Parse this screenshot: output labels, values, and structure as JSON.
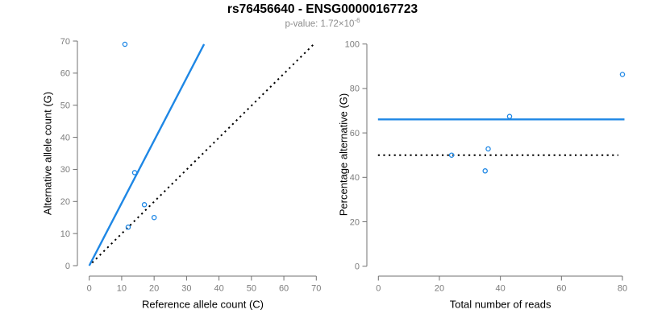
{
  "header": {
    "title": "rs76456640 - ENSG00000167723",
    "subtitle_main": "p-value: 1.72×10",
    "subtitle_exponent": "-6"
  },
  "colors": {
    "accent_blue": "#1E87E5",
    "identity_black": "#000000",
    "axis_gray": "#707070",
    "tick_label_gray": "#7C7C7C",
    "subtitle_gray": "#8C8C8C"
  },
  "chart_data": [
    {
      "type": "scatter",
      "panel": "left",
      "xlabel": "Reference allele count (C)",
      "ylabel": "Alternative allele count (G)",
      "xlim": [
        0,
        70
      ],
      "ylim": [
        0,
        70
      ],
      "xticks": [
        0,
        10,
        20,
        30,
        40,
        50,
        60,
        70
      ],
      "yticks": [
        0,
        10,
        20,
        30,
        40,
        50,
        60,
        70
      ],
      "grid": false,
      "legend": "none",
      "marker": "open-circle",
      "points": [
        [
          11,
          69
        ],
        [
          12,
          12
        ],
        [
          14,
          29
        ],
        [
          17,
          19
        ],
        [
          20,
          15
        ]
      ],
      "lines": [
        {
          "name": "fit-line",
          "type": "segment",
          "x1": 0,
          "y1": 0,
          "x2": 35.4,
          "y2": 69,
          "style": "solid",
          "color": "blue"
        },
        {
          "name": "identity-line",
          "type": "segment",
          "x1": 0.9,
          "y1": 0.9,
          "x2": 69,
          "y2": 68.8,
          "style": "dotted",
          "color": "black"
        }
      ]
    },
    {
      "type": "scatter",
      "panel": "right",
      "xlabel": "Total number of reads",
      "ylabel": "Percentage alternative (G)",
      "xlim": [
        0,
        80
      ],
      "ylim": [
        0,
        100
      ],
      "xticks": [
        0,
        20,
        40,
        60,
        80
      ],
      "yticks": [
        0,
        20,
        40,
        60,
        80,
        100
      ],
      "grid": false,
      "legend": "none",
      "marker": "open-circle",
      "points": [
        [
          24,
          50
        ],
        [
          35,
          42.9
        ],
        [
          36,
          52.8
        ],
        [
          43,
          67.4
        ],
        [
          80,
          86.3
        ]
      ],
      "lines": [
        {
          "name": "mean-percentage-line",
          "type": "hline",
          "y": 66.1,
          "style": "solid",
          "color": "blue"
        },
        {
          "name": "expected-percentage-line",
          "type": "hline",
          "y": 50,
          "style": "dotted",
          "color": "black"
        }
      ]
    }
  ]
}
